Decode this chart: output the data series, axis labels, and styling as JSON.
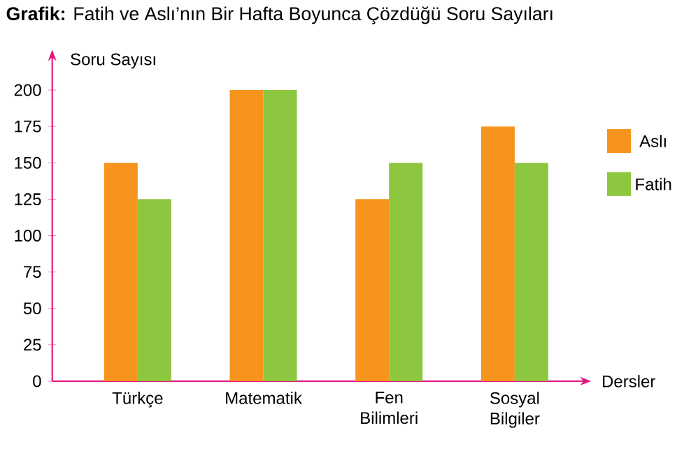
{
  "chart_data": {
    "type": "bar",
    "title": "**Grafik:** Fatih ve Aslı’nın Bir Hafta Boyunca Çözdüğü Soru Sayıları",
    "ylabel": "Soru Sayısı",
    "xlabel": "Dersler",
    "categories": [
      "Türkçe",
      "Matematik",
      "Fen Bilimleri",
      "Sosyal Bilgiler"
    ],
    "series": [
      {
        "name": "Aslı",
        "color": "#f7941d",
        "values": [
          150,
          200,
          125,
          175
        ]
      },
      {
        "name": "Fatih",
        "color": "#8dc63f",
        "values": [
          125,
          200,
          150,
          150
        ]
      }
    ],
    "ylim": [
      0,
      220
    ],
    "yticks": [
      0,
      25,
      50,
      75,
      100,
      125,
      150,
      175,
      200
    ],
    "legend": "right"
  }
}
